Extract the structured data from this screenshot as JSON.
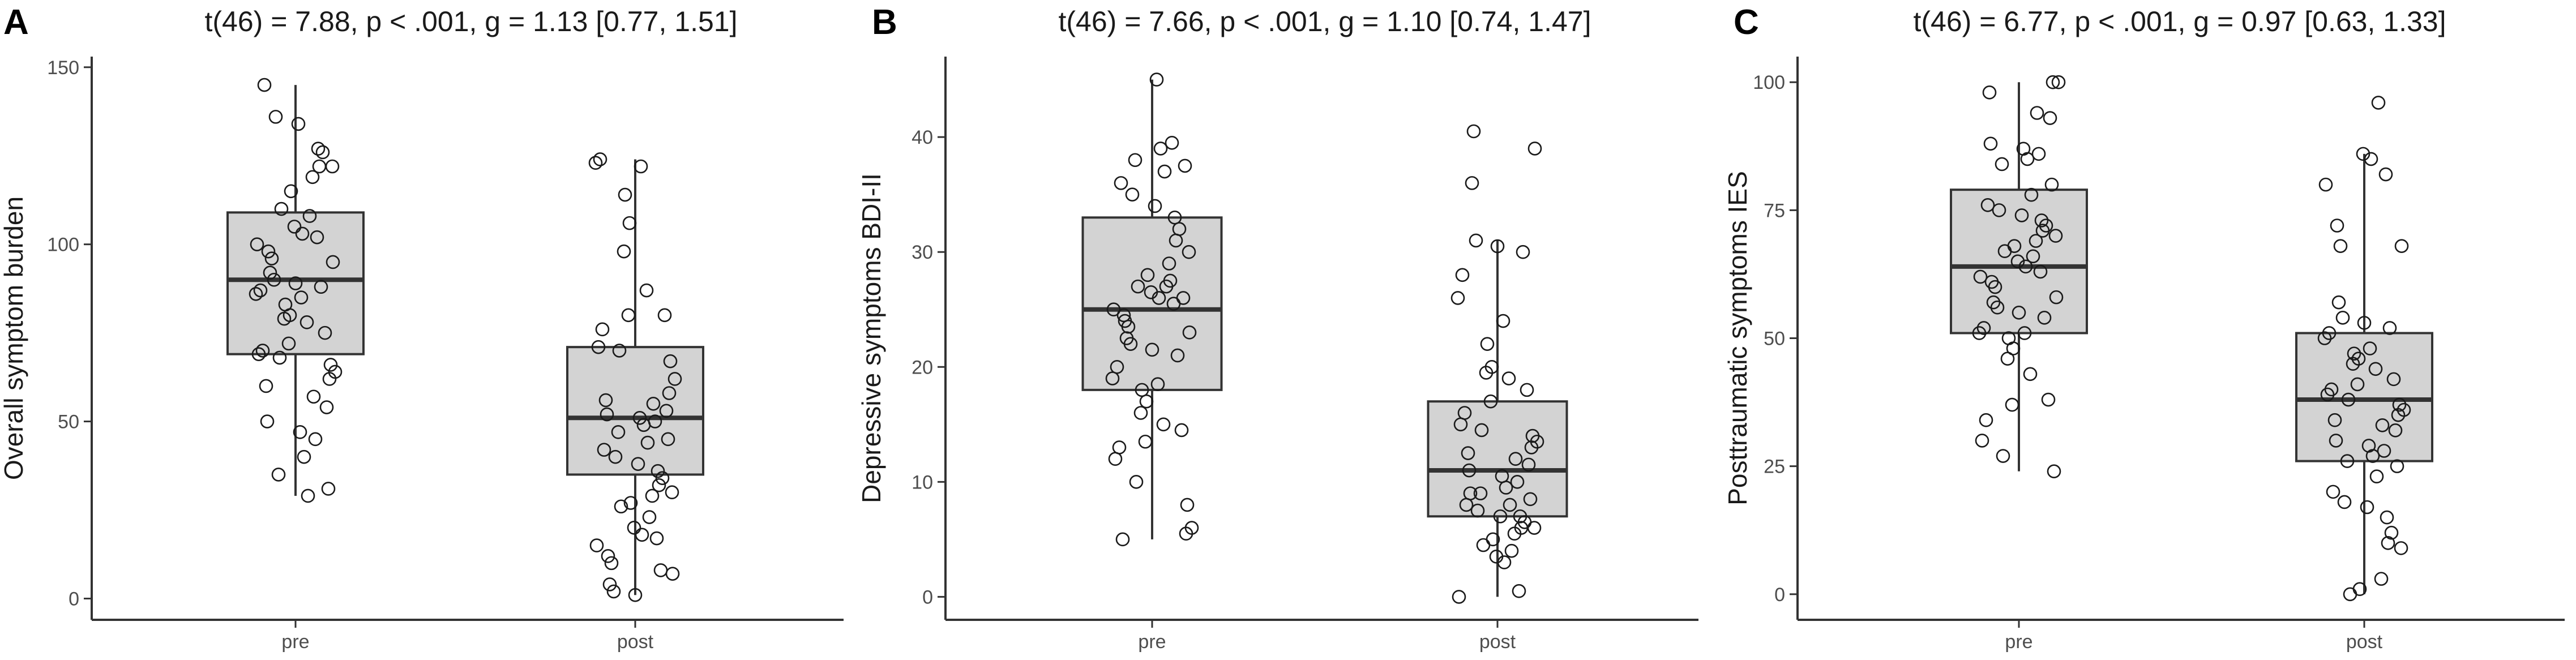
{
  "chart_data": [
    {
      "type": "box",
      "panel_label": "A",
      "title": "t(46) = 7.88, p < .001, g = 1.13 [0.77, 1.51]",
      "xlabel": "",
      "ylabel": "Overall symptom burden",
      "ylim": [
        -6,
        153
      ],
      "yticks": [
        0,
        50,
        100,
        150
      ],
      "categories": [
        "pre",
        "post"
      ],
      "grid": false,
      "boxes": [
        {
          "category": "pre",
          "whisker_low": 29,
          "q1": 69,
          "median": 90,
          "q3": 109,
          "whisker_high": 145
        },
        {
          "category": "post",
          "whisker_low": 1,
          "q1": 35,
          "median": 51,
          "q3": 71,
          "whisker_high": 124
        }
      ],
      "points": [
        [
          145,
          136,
          134,
          127,
          126,
          122,
          122,
          119,
          115,
          110,
          108,
          105,
          103,
          102,
          100,
          98,
          96,
          95,
          92,
          90,
          89,
          88,
          87,
          86,
          85,
          83,
          80,
          79,
          78,
          75,
          72,
          70,
          69,
          68,
          66,
          64,
          62,
          60,
          57,
          54,
          50,
          47,
          45,
          40,
          35,
          31,
          29
        ],
        [
          124,
          123,
          122,
          114,
          106,
          98,
          87,
          80,
          80,
          76,
          71,
          70,
          67,
          62,
          58,
          56,
          55,
          53,
          52,
          51,
          50,
          49,
          47,
          45,
          44,
          42,
          40,
          38,
          36,
          34,
          32,
          30,
          29,
          27,
          26,
          23,
          20,
          18,
          17,
          15,
          12,
          10,
          7,
          4,
          2,
          1,
          8
        ]
      ]
    },
    {
      "type": "box",
      "panel_label": "B",
      "title": "t(46) = 7.66, p < .001, g = 1.10 [0.74, 1.47]",
      "xlabel": "",
      "ylabel": "Depressive symptoms BDI-II",
      "ylim": [
        -2,
        47
      ],
      "yticks": [
        0,
        10,
        20,
        30,
        40
      ],
      "categories": [
        "pre",
        "post"
      ],
      "grid": false,
      "boxes": [
        {
          "category": "pre",
          "whisker_low": 5,
          "q1": 18,
          "median": 25,
          "q3": 33,
          "whisker_high": 45
        },
        {
          "category": "post",
          "whisker_low": 0,
          "q1": 7,
          "median": 11,
          "q3": 17,
          "whisker_high": 31
        }
      ],
      "points": [
        [
          45,
          39.5,
          39,
          38,
          37.5,
          37,
          36,
          35,
          34,
          33,
          32,
          31,
          30,
          29,
          28,
          27,
          27,
          26.5,
          26,
          25.5,
          25,
          24,
          23.5,
          23,
          22.5,
          22,
          21.5,
          21,
          20,
          19,
          18.5,
          18,
          17,
          16,
          15,
          14.5,
          13.5,
          13,
          12,
          10,
          8,
          6,
          5.5,
          5,
          27.5,
          26,
          24.5
        ],
        [
          40.5,
          39,
          36,
          31,
          30.5,
          30,
          28,
          26,
          24,
          22,
          20,
          19.5,
          19,
          18,
          17,
          16,
          15,
          14.5,
          14,
          13.5,
          13,
          12.5,
          12,
          11.5,
          11,
          10.5,
          10,
          9.5,
          9,
          8.5,
          8,
          8,
          7.5,
          7,
          7,
          6.5,
          6,
          6,
          5.5,
          5,
          4.5,
          4,
          3.5,
          3,
          0.5,
          0,
          9
        ]
      ]
    },
    {
      "type": "box",
      "panel_label": "C",
      "title": "t(46) = 6.77, p < .001, g = 0.97 [0.63, 1.33]",
      "xlabel": "",
      "ylabel": "Posttraumatic symptoms IES",
      "ylim": [
        -5,
        105
      ],
      "yticks": [
        0,
        25,
        50,
        75,
        100
      ],
      "categories": [
        "pre",
        "post"
      ],
      "grid": false,
      "boxes": [
        {
          "category": "pre",
          "whisker_low": 24,
          "q1": 51,
          "median": 64,
          "q3": 79,
          "whisker_high": 100
        },
        {
          "category": "post",
          "whisker_low": 0,
          "q1": 26,
          "median": 38,
          "q3": 51,
          "whisker_high": 86
        }
      ],
      "points": [
        [
          100,
          100,
          98,
          94,
          93,
          88,
          87,
          86,
          85,
          84,
          80,
          78,
          76,
          75,
          74,
          73,
          72,
          71,
          70,
          69,
          68,
          67,
          66,
          65,
          64,
          63,
          62,
          61,
          60,
          58,
          57,
          56,
          55,
          54,
          52,
          51,
          51,
          50,
          48,
          46,
          43,
          38,
          37,
          34,
          30,
          27,
          24
        ],
        [
          96,
          86,
          85,
          82,
          80,
          72,
          68,
          68,
          57,
          54,
          53,
          52,
          51,
          50,
          48,
          47,
          46,
          45,
          44,
          42,
          41,
          40,
          39,
          38,
          37,
          36,
          35,
          34,
          33,
          32,
          30,
          29,
          28,
          27,
          26,
          25,
          23,
          20,
          18,
          17,
          15,
          12,
          10,
          9,
          3,
          1,
          0
        ]
      ]
    }
  ]
}
